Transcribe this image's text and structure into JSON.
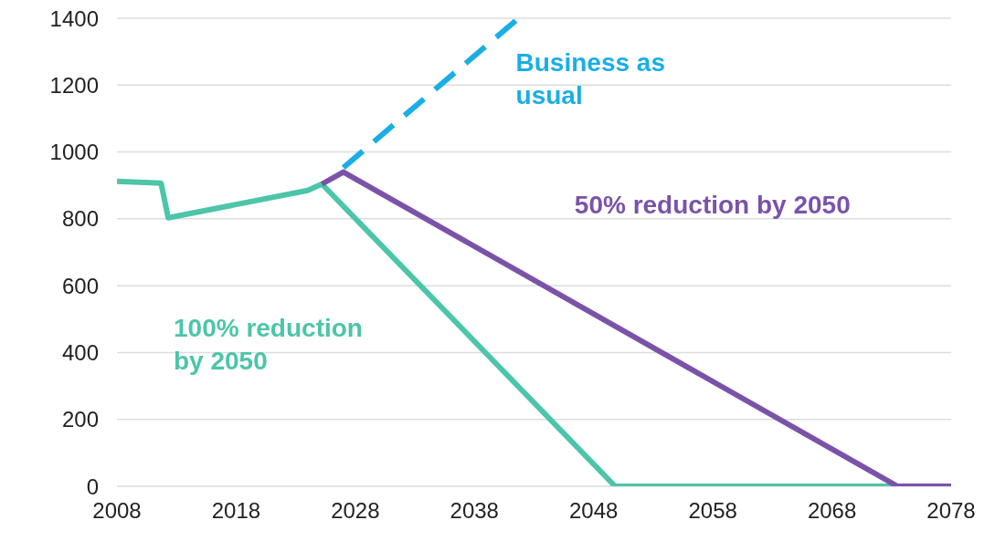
{
  "chart_data": {
    "type": "line",
    "xlim": [
      2008,
      2078
    ],
    "ylim": [
      0,
      1400
    ],
    "xticks": [
      2008,
      2018,
      2028,
      2038,
      2048,
      2058,
      2068,
      2078
    ],
    "yticks": [
      0,
      200,
      400,
      600,
      800,
      1000,
      1200,
      1400
    ],
    "grid": "y",
    "series": [
      {
        "name": "100% reduction by 2050",
        "color": "#4cc5a9",
        "x": [
          2008,
          2011.7,
          2012.3,
          2024,
          2025.2,
          2049.8,
          2078
        ],
        "values": [
          912,
          907,
          803,
          885,
          904,
          0,
          0
        ]
      },
      {
        "name": "Business as usual",
        "color": "#1aaee6",
        "line_style": "dashed",
        "x": [
          2027,
          2041.7
        ],
        "values": [
          953,
          1400
        ]
      },
      {
        "name": "50% reduction by 2050",
        "color": "#7a53a9",
        "x": [
          2025.2,
          2027,
          2073.5,
          2078
        ],
        "values": [
          904,
          940,
          0,
          0
        ]
      }
    ]
  }
}
